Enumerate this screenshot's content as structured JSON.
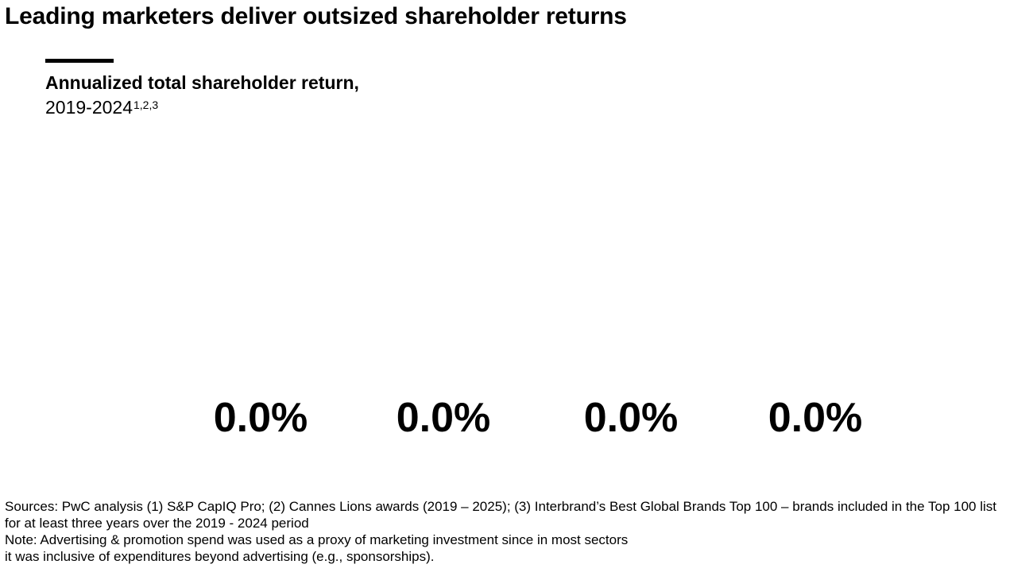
{
  "page": {
    "title": "Leading marketers deliver outsized shareholder returns"
  },
  "chart_data": {
    "type": "bar",
    "title": "Annualized total shareholder return,",
    "period": "2019-2024",
    "period_superscript": "1,2,3",
    "categories": [
      "",
      "",
      "",
      ""
    ],
    "values": [
      0.0,
      0.0,
      0.0,
      0.0
    ],
    "value_labels": [
      "0.0%",
      "0.0%",
      "0.0%",
      "0.0%"
    ],
    "xlabel": "",
    "ylabel": "",
    "ylim": [
      0,
      100
    ],
    "grid": false,
    "bar_color": "#000000"
  },
  "footnotes": {
    "sources_line1": "Sources: PwC analysis (1) S&P CapIQ Pro; (2) Cannes Lions awards (2019 – 2025); (3) Interbrand’s Best Global Brands Top 100 – brands included in the Top 100 list",
    "sources_line2": "for at least three years over the 2019 - 2024 period",
    "note_line1": "Note: Advertising & promotion spend was used as a proxy of marketing investment since in most sectors",
    "note_line2": "it was inclusive of expenditures beyond advertising (e.g., sponsorships)."
  },
  "colors": {
    "text": "#000000",
    "background": "#ffffff",
    "accent_rule": "#000000"
  }
}
